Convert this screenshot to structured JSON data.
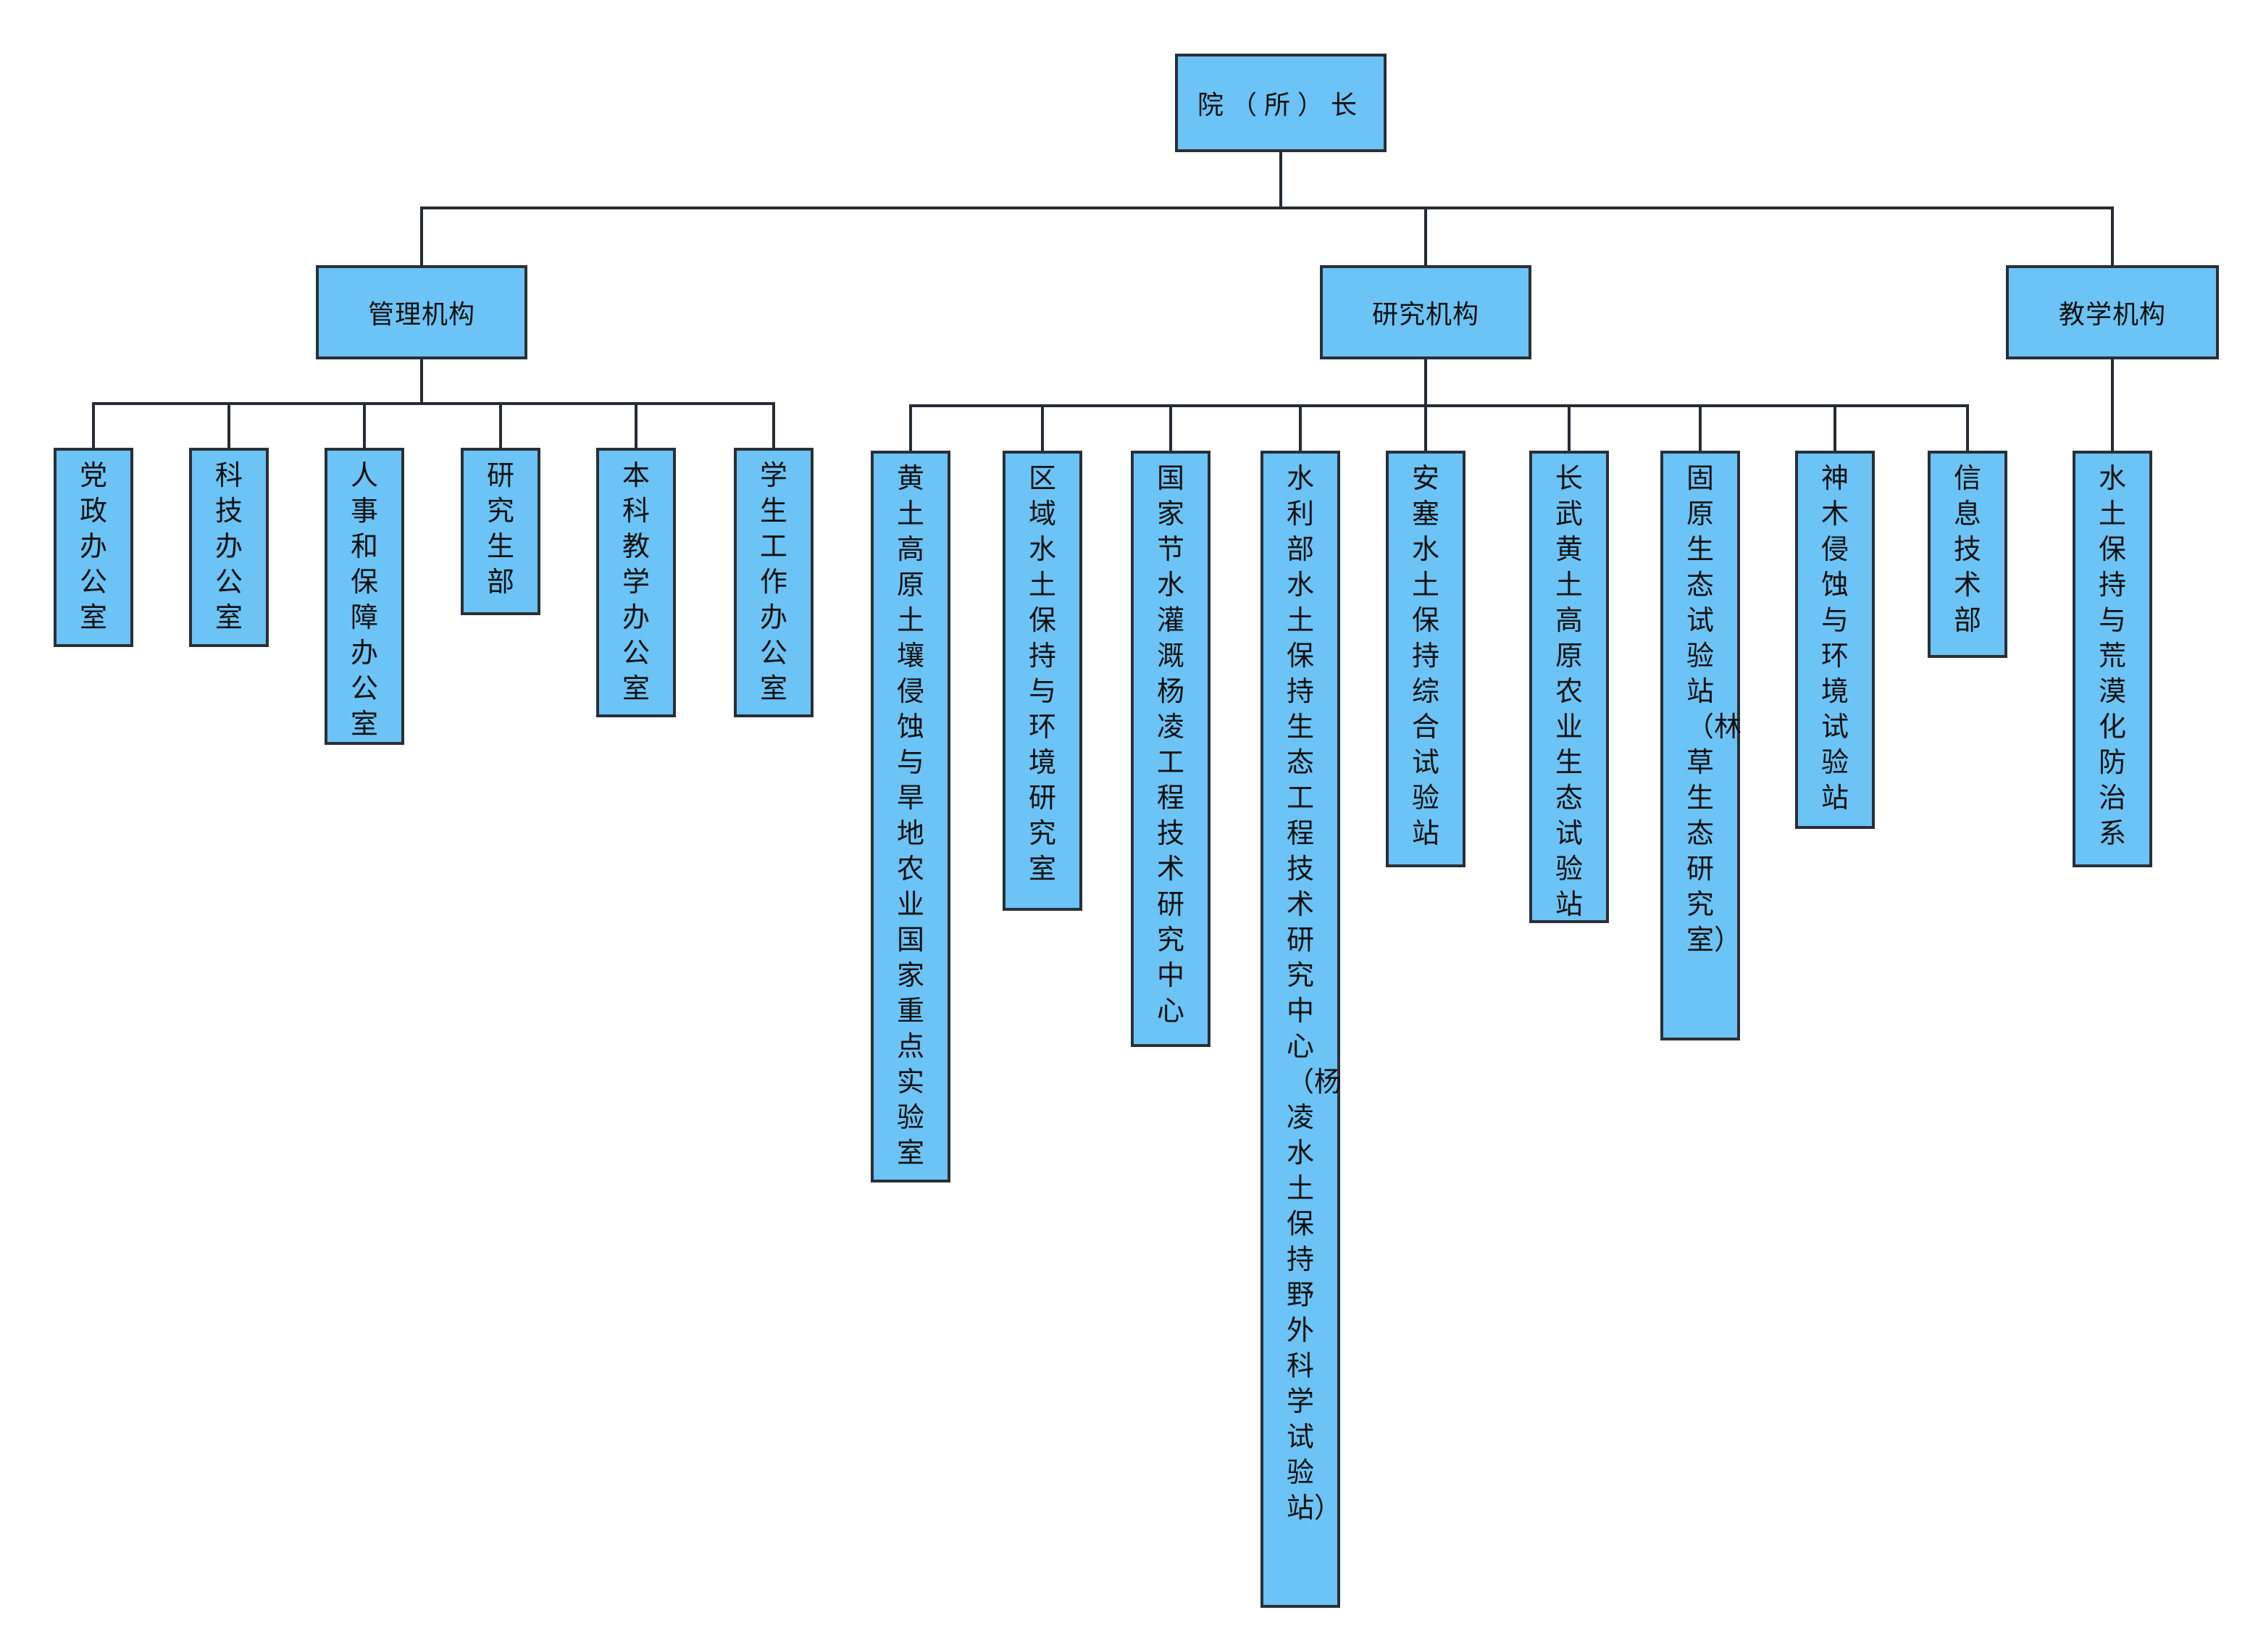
{
  "colors": {
    "box_fill": "#6cc3f5",
    "box_border": "#2a2f36",
    "connector": "#262b33",
    "background": "#ffffff"
  },
  "root": {
    "label": "院（所）长"
  },
  "branches": [
    {
      "label": "管理机构",
      "children": [
        "党政办公室",
        "科技办公室",
        "人事和保障办公室",
        "研究生部",
        "本科教学办公室",
        "学生工作办公室"
      ]
    },
    {
      "label": "研究机构",
      "children": [
        "黄土高原土壤侵蚀与旱地农业国家重点实验室",
        "区域水土保持与环境研究室",
        "国家节水灌溉杨凌工程技术研究中心",
        "水利部水土保持生态工程技术研究中心（杨凌水土保持野外科学试验站）",
        "安塞水土保持综合试验站",
        "长武黄土高原农业生态试验站",
        "固原生态试验站（林草生态研究室）",
        "神木侵蚀与环境试验站",
        "信息技术部"
      ]
    },
    {
      "label": "教学机构",
      "children": [
        "水土保持与荒漠化防治系"
      ]
    }
  ]
}
